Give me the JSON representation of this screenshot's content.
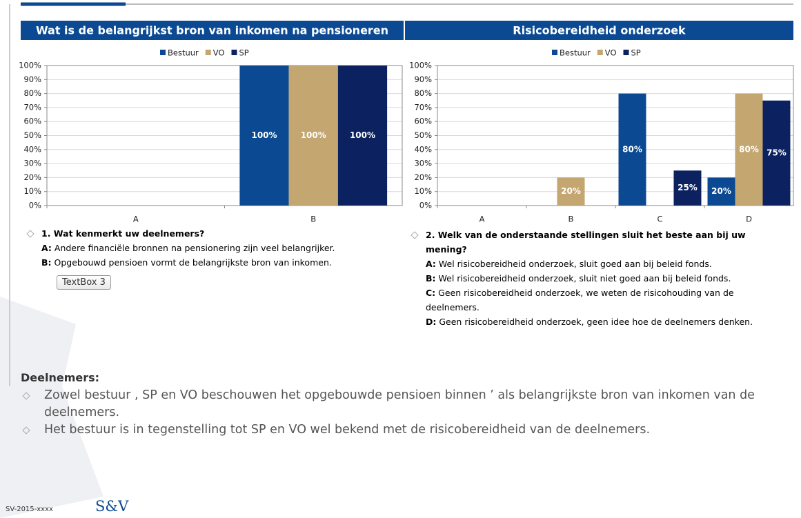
{
  "chart_data": [
    {
      "type": "bar",
      "title": "Wat is de belangrijkst bron van inkomen na pensioneren",
      "categories": [
        "A",
        "B"
      ],
      "series": [
        {
          "name": "Bestuur",
          "color": "#0b4a93",
          "values": [
            0,
            100
          ],
          "value_labels": [
            null,
            "100%"
          ]
        },
        {
          "name": "VO",
          "color": "#c4a670",
          "values": [
            0,
            100
          ],
          "value_labels": [
            null,
            "100%"
          ]
        },
        {
          "name": "SP",
          "color": "#0c2260",
          "values": [
            0,
            100
          ],
          "value_labels": [
            null,
            "100%"
          ]
        }
      ],
      "ylim": [
        0,
        100
      ],
      "yticks": [
        {
          "value": 0,
          "label": "0%"
        },
        {
          "value": 10,
          "label": "10%"
        },
        {
          "value": 20,
          "label": "20%"
        },
        {
          "value": 30,
          "label": "30%"
        },
        {
          "value": 40,
          "label": "40%"
        },
        {
          "value": 50,
          "label": "50%"
        },
        {
          "value": 60,
          "label": "60%"
        },
        {
          "value": 70,
          "label": "70%"
        },
        {
          "value": 80,
          "label": "80%"
        },
        {
          "value": 90,
          "label": "90%"
        },
        {
          "value": 100,
          "label": "100%"
        }
      ],
      "legend": "top"
    },
    {
      "type": "bar",
      "title": "Risicobereidheid onderzoek",
      "categories": [
        "A",
        "B",
        "C",
        "D"
      ],
      "series": [
        {
          "name": "Bestuur",
          "color": "#0b4a93",
          "values": [
            0,
            0,
            80,
            20
          ],
          "value_labels": [
            null,
            null,
            "80%",
            "20%"
          ]
        },
        {
          "name": "VO",
          "color": "#c4a670",
          "values": [
            0,
            20,
            0,
            80
          ],
          "value_labels": [
            null,
            "20%",
            null,
            "80%"
          ]
        },
        {
          "name": "SP",
          "color": "#0c2260",
          "values": [
            0,
            0,
            25,
            75
          ],
          "value_labels": [
            null,
            null,
            "25%",
            "75%"
          ]
        }
      ],
      "ylim": [
        0,
        100
      ],
      "yticks": [
        {
          "value": 0,
          "label": "0%"
        },
        {
          "value": 10,
          "label": "10%"
        },
        {
          "value": 20,
          "label": "20%"
        },
        {
          "value": 30,
          "label": "30%"
        },
        {
          "value": 40,
          "label": "40%"
        },
        {
          "value": 50,
          "label": "50%"
        },
        {
          "value": 60,
          "label": "60%"
        },
        {
          "value": 70,
          "label": "70%"
        },
        {
          "value": 80,
          "label": "80%"
        },
        {
          "value": 90,
          "label": "90%"
        },
        {
          "value": 100,
          "label": "100%"
        }
      ],
      "legend": "top"
    }
  ],
  "question1": {
    "title": "1. Wat kenmerkt uw deelnemers?",
    "items": [
      {
        "label": "A:",
        "text": "Andere financiële bronnen na pensionering zijn veel belangrijker."
      },
      {
        "label": "B:",
        "text": "Opgebouwd pensioen vormt de belangrijkste bron van inkomen."
      }
    ]
  },
  "textbox": "TextBox 3",
  "question2": {
    "title": "2. Welk van de onderstaande stellingen sluit het beste aan bij uw mening?",
    "items": [
      {
        "label": "A:",
        "text": "Wel risicobereidheid onderzoek, sluit goed aan bij beleid fonds."
      },
      {
        "label": "B:",
        "text": "Wel risicobereidheid onderzoek, sluit niet goed aan  bij beleid fonds."
      },
      {
        "label": "C:",
        "text": "Geen risicobereidheid onderzoek, we weten de risicohouding van de deelnemers."
      },
      {
        "label": "D:",
        "text": "Geen risicobereidheid onderzoek, geen idee hoe de deelnemers denken."
      }
    ]
  },
  "summary": {
    "heading": "Deelnemers:",
    "bullets": [
      "Zowel bestuur , SP en VO beschouwen het opgebouwde pensioen binnen ’ als belangrijkste bron van inkomen van de deelnemers.",
      "Het bestuur is in tegenstelling tot SP en VO wel bekend met de risicobereidheid van de deelnemers."
    ]
  },
  "footer": {
    "code": "SV-2015-xxxx",
    "logo": "S&V"
  }
}
